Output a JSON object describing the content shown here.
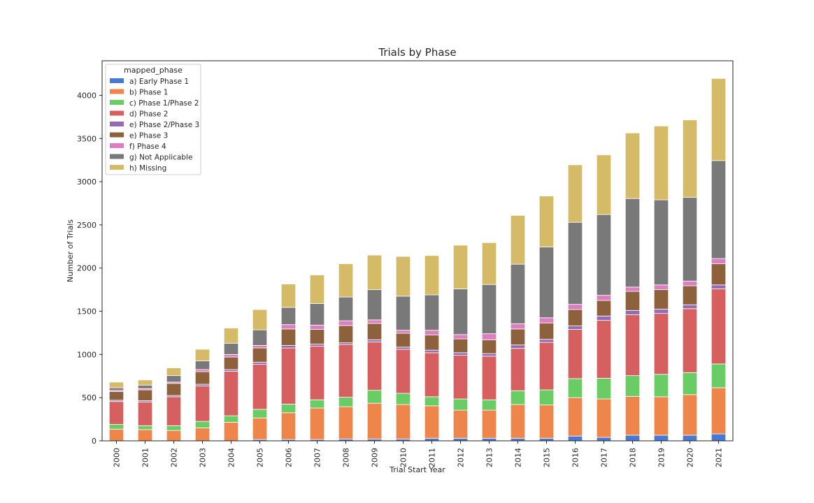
{
  "chart_data": {
    "type": "bar",
    "stacked": true,
    "title": "Trials by Phase",
    "xlabel": "Trial Start Year",
    "ylabel": "Number of Trials",
    "ylim": [
      0,
      4400
    ],
    "yticks": [
      0,
      500,
      1000,
      1500,
      2000,
      2500,
      3000,
      3500,
      4000
    ],
    "grid": false,
    "legend_title": "mapped_phase",
    "legend_position": "top-left",
    "categories": [
      "2000",
      "2001",
      "2002",
      "2003",
      "2004",
      "2005",
      "2006",
      "2007",
      "2008",
      "2009",
      "2010",
      "2011",
      "2012",
      "2013",
      "2014",
      "2015",
      "2016",
      "2017",
      "2018",
      "2019",
      "2020",
      "2021"
    ],
    "series": [
      {
        "name": "a) Early Phase 1",
        "color": "#4878d0",
        "values": [
          0,
          0,
          0,
          0,
          0,
          15,
          15,
          15,
          20,
          20,
          20,
          30,
          30,
          30,
          30,
          30,
          55,
          40,
          65,
          65,
          65,
          80
        ]
      },
      {
        "name": "b) Phase 1",
        "color": "#ee854a",
        "values": [
          135,
          130,
          120,
          150,
          215,
          250,
          310,
          365,
          375,
          415,
          400,
          375,
          325,
          325,
          390,
          385,
          445,
          445,
          450,
          445,
          470,
          535
        ]
      },
      {
        "name": "c) Phase 1/Phase 2",
        "color": "#6acc64",
        "values": [
          55,
          45,
          55,
          75,
          75,
          100,
          100,
          95,
          110,
          150,
          130,
          105,
          130,
          120,
          160,
          175,
          220,
          240,
          240,
          260,
          255,
          275
        ]
      },
      {
        "name": "d) Phase 2",
        "color": "#d65f5f",
        "values": [
          265,
          275,
          335,
          410,
          515,
          520,
          650,
          620,
          610,
          560,
          510,
          510,
          505,
          505,
          490,
          550,
          570,
          670,
          705,
          705,
          740,
          870
        ]
      },
      {
        "name": "e) Phase 2/Phase 3",
        "color": "#956cb4",
        "values": [
          15,
          15,
          15,
          20,
          20,
          25,
          30,
          25,
          20,
          25,
          25,
          30,
          30,
          30,
          40,
          35,
          40,
          50,
          50,
          50,
          45,
          45
        ]
      },
      {
        "name": "e) Phase 3",
        "color": "#8c613c",
        "values": [
          100,
          125,
          140,
          145,
          145,
          165,
          190,
          170,
          200,
          190,
          160,
          175,
          160,
          160,
          185,
          190,
          190,
          180,
          220,
          225,
          220,
          245
        ]
      },
      {
        "name": "f) Phase 4",
        "color": "#dc7ec0",
        "values": [
          15,
          15,
          15,
          25,
          30,
          30,
          50,
          50,
          55,
          40,
          35,
          55,
          50,
          70,
          60,
          60,
          60,
          60,
          50,
          55,
          55,
          60
        ]
      },
      {
        "name": "g) Not Applicable",
        "color": "#797979",
        "values": [
          30,
          40,
          75,
          100,
          130,
          180,
          200,
          250,
          275,
          350,
          395,
          410,
          530,
          570,
          690,
          820,
          950,
          935,
          1025,
          985,
          970,
          1135
        ]
      },
      {
        "name": "h) Missing",
        "color": "#d5bb67",
        "values": [
          65,
          60,
          90,
          135,
          175,
          235,
          270,
          330,
          385,
          400,
          460,
          455,
          505,
          485,
          565,
          590,
          665,
          690,
          760,
          855,
          895,
          950
        ]
      }
    ]
  }
}
